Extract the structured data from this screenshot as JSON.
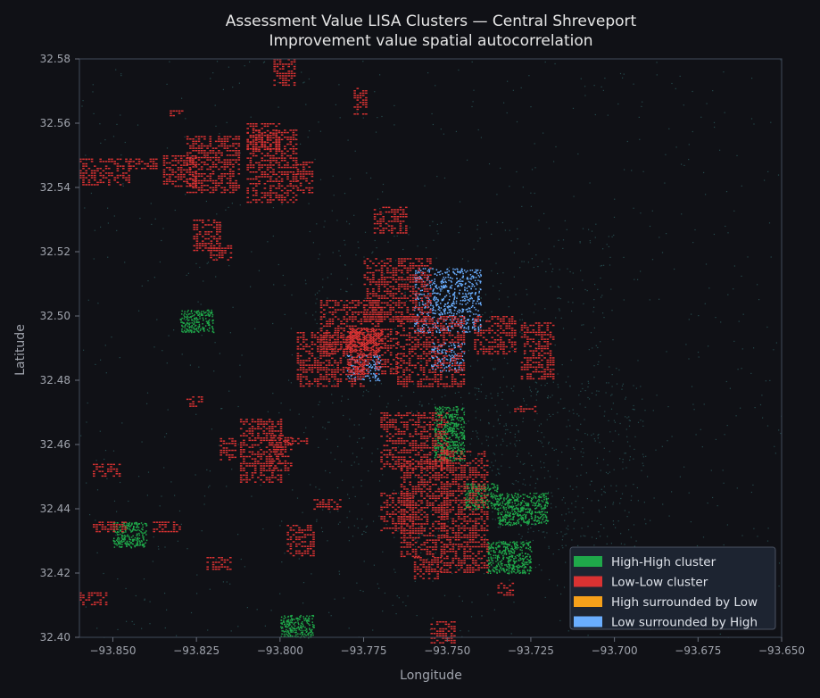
{
  "chart_data": {
    "type": "scatter",
    "title": "Assessment Value LISA Clusters — Central Shreveport",
    "subtitle": "Improvement value spatial autocorrelation",
    "xlabel": "Longitude",
    "ylabel": "Latitude",
    "xlim": [
      -93.86,
      -93.65
    ],
    "ylim": [
      32.4,
      32.58
    ],
    "x_ticks": [
      -93.85,
      -93.825,
      -93.8,
      -93.775,
      -93.75,
      -93.725,
      -93.7,
      -93.675,
      -93.65
    ],
    "x_tick_labels": [
      "−93.850",
      "−93.825",
      "−93.800",
      "−93.775",
      "−93.750",
      "−93.725",
      "−93.700",
      "−93.675",
      "−93.650"
    ],
    "y_ticks": [
      32.4,
      32.42,
      32.44,
      32.46,
      32.48,
      32.5,
      32.52,
      32.54,
      32.56,
      32.58
    ],
    "y_tick_labels": [
      "32.40",
      "32.42",
      "32.44",
      "32.46",
      "32.48",
      "32.50",
      "32.52",
      "32.54",
      "32.56",
      "32.58"
    ],
    "grid": false,
    "legend_position": "bottom-right",
    "legend": [
      {
        "label": "High-High cluster",
        "color": "#1fa84a"
      },
      {
        "label": "Low-Low cluster",
        "color": "#d93232"
      },
      {
        "label": "High surrounded by Low",
        "color": "#f5a01a"
      },
      {
        "label": "Low surrounded by High",
        "color": "#6aaeff"
      }
    ],
    "colors": {
      "background": "#101116",
      "axes_frame": "#3a4150",
      "text": "#e6e6e6",
      "tick_text": "#a0a4ad",
      "not_significant": "#2c5d60"
    },
    "low_low_regions": [
      {
        "x": [
          -93.81,
          -93.795
        ],
        "y": [
          32.535,
          32.558
        ]
      },
      {
        "x": [
          -93.828,
          -93.812
        ],
        "y": [
          32.538,
          32.556
        ]
      },
      {
        "x": [
          -93.835,
          -93.825
        ],
        "y": [
          32.54,
          32.55
        ]
      },
      {
        "x": [
          -93.86,
          -93.845
        ],
        "y": [
          32.541,
          32.549
        ]
      },
      {
        "x": [
          -93.845,
          -93.837
        ],
        "y": [
          32.546,
          32.549
        ]
      },
      {
        "x": [
          -93.833,
          -93.829
        ],
        "y": [
          32.562,
          32.564
        ]
      },
      {
        "x": [
          -93.81,
          -93.8
        ],
        "y": [
          32.552,
          32.56
        ]
      },
      {
        "x": [
          -93.795,
          -93.79
        ],
        "y": [
          32.538,
          32.548
        ]
      },
      {
        "x": [
          -93.826,
          -93.818
        ],
        "y": [
          32.52,
          32.53
        ]
      },
      {
        "x": [
          -93.821,
          -93.815
        ],
        "y": [
          32.517,
          32.522
        ]
      },
      {
        "x": [
          -93.775,
          -93.755
        ],
        "y": [
          32.498,
          32.518
        ]
      },
      {
        "x": [
          -93.788,
          -93.77
        ],
        "y": [
          32.488,
          32.505
        ]
      },
      {
        "x": [
          -93.795,
          -93.775
        ],
        "y": [
          32.478,
          32.495
        ]
      },
      {
        "x": [
          -93.78,
          -93.765
        ],
        "y": [
          32.482,
          32.496
        ]
      },
      {
        "x": [
          -93.765,
          -93.745
        ],
        "y": [
          32.478,
          32.5
        ]
      },
      {
        "x": [
          -93.742,
          -93.73
        ],
        "y": [
          32.488,
          32.5
        ]
      },
      {
        "x": [
          -93.728,
          -93.718
        ],
        "y": [
          32.48,
          32.498
        ]
      },
      {
        "x": [
          -93.812,
          -93.8
        ],
        "y": [
          32.448,
          32.468
        ]
      },
      {
        "x": [
          -93.803,
          -93.797
        ],
        "y": [
          32.452,
          32.463
        ]
      },
      {
        "x": [
          -93.8,
          -93.792
        ],
        "y": [
          32.46,
          32.462
        ]
      },
      {
        "x": [
          -93.818,
          -93.813
        ],
        "y": [
          32.455,
          32.462
        ]
      },
      {
        "x": [
          -93.828,
          -93.823
        ],
        "y": [
          32.472,
          32.475
        ]
      },
      {
        "x": [
          -93.77,
          -93.75
        ],
        "y": [
          32.452,
          32.47
        ]
      },
      {
        "x": [
          -93.764,
          -93.75
        ],
        "y": [
          32.425,
          32.455
        ]
      },
      {
        "x": [
          -93.76,
          -93.752
        ],
        "y": [
          32.418,
          32.425
        ]
      },
      {
        "x": [
          -93.752,
          -93.738
        ],
        "y": [
          32.42,
          32.458
        ]
      },
      {
        "x": [
          -93.77,
          -93.76
        ],
        "y": [
          32.432,
          32.445
        ]
      },
      {
        "x": [
          -93.798,
          -93.79
        ],
        "y": [
          32.425,
          32.435
        ]
      },
      {
        "x": [
          -93.822,
          -93.815
        ],
        "y": [
          32.421,
          32.425
        ]
      },
      {
        "x": [
          -93.79,
          -93.782
        ],
        "y": [
          32.44,
          32.443
        ]
      },
      {
        "x": [
          -93.856,
          -93.846
        ],
        "y": [
          32.433,
          32.436
        ]
      },
      {
        "x": [
          -93.838,
          -93.83
        ],
        "y": [
          32.433,
          32.436
        ]
      },
      {
        "x": [
          -93.856,
          -93.848
        ],
        "y": [
          32.45,
          32.454
        ]
      },
      {
        "x": [
          -93.86,
          -93.852
        ],
        "y": [
          32.41,
          32.414
        ]
      },
      {
        "x": [
          -93.802,
          -93.796
        ],
        "y": [
          32.572,
          32.58
        ]
      },
      {
        "x": [
          -93.778,
          -93.774
        ],
        "y": [
          32.563,
          32.571
        ]
      },
      {
        "x": [
          -93.772,
          -93.762
        ],
        "y": [
          32.526,
          32.534
        ]
      },
      {
        "x": [
          -93.73,
          -93.724
        ],
        "y": [
          32.47,
          32.472
        ]
      },
      {
        "x": [
          -93.755,
          -93.748
        ],
        "y": [
          32.398,
          32.405
        ]
      },
      {
        "x": [
          -93.735,
          -93.73
        ],
        "y": [
          32.413,
          32.417
        ]
      }
    ],
    "high_high_regions": [
      {
        "x": [
          -93.754,
          -93.745
        ],
        "y": [
          32.455,
          32.472
        ]
      },
      {
        "x": [
          -93.745,
          -93.735
        ],
        "y": [
          32.44,
          32.448
        ]
      },
      {
        "x": [
          -93.738,
          -93.725
        ],
        "y": [
          32.42,
          32.43
        ]
      },
      {
        "x": [
          -93.735,
          -93.72
        ],
        "y": [
          32.435,
          32.445
        ]
      },
      {
        "x": [
          -93.8,
          -93.79
        ],
        "y": [
          32.4,
          32.407
        ]
      },
      {
        "x": [
          -93.83,
          -93.82
        ],
        "y": [
          32.495,
          32.502
        ]
      },
      {
        "x": [
          -93.85,
          -93.84
        ],
        "y": [
          32.428,
          32.436
        ]
      }
    ],
    "low_surrounded_by_high_regions": [
      {
        "x": [
          -93.76,
          -93.74
        ],
        "y": [
          32.495,
          32.515
        ]
      },
      {
        "x": [
          -93.78,
          -93.77
        ],
        "y": [
          32.48,
          32.488
        ]
      },
      {
        "x": [
          -93.755,
          -93.745
        ],
        "y": [
          32.483,
          32.492
        ]
      }
    ],
    "not_significant_regions": [
      {
        "x": [
          -93.86,
          -93.65
        ],
        "y": [
          32.4,
          32.58
        ]
      },
      {
        "x": [
          -93.79,
          -93.7
        ],
        "y": [
          32.43,
          32.53
        ]
      },
      {
        "x": [
          -93.76,
          -93.69
        ],
        "y": [
          32.42,
          32.48
        ]
      }
    ]
  }
}
